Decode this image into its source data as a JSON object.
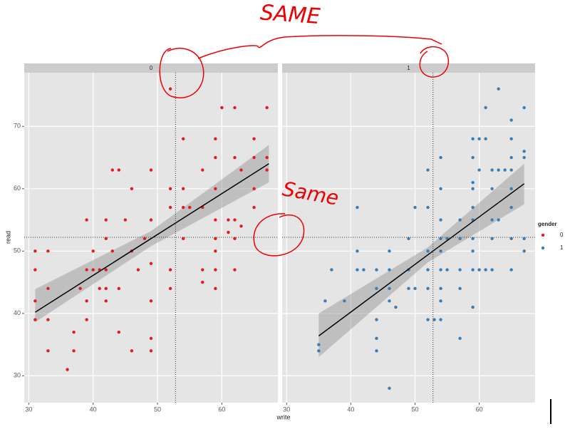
{
  "chart_data": {
    "type": "scatter",
    "x_label": "write",
    "y_label": "read",
    "legend_title": "gender",
    "annotations": [
      "SAME",
      "Same"
    ],
    "xlim": [
      29.3,
      68.7
    ],
    "ylim": [
      25.7,
      78.6
    ],
    "xticks": [
      30,
      40,
      50,
      60
    ],
    "yticks": [
      30,
      40,
      50,
      60,
      70
    ],
    "grid": true,
    "vline": 52.8,
    "hline": 52.2,
    "legend_position": "right",
    "series": [
      {
        "name": "0",
        "color": "#e41a1c",
        "x": [
          31,
          31,
          31,
          31,
          33,
          33,
          33,
          33,
          36,
          37,
          37,
          38,
          39,
          39,
          39,
          39,
          40,
          40,
          41,
          41,
          42,
          42,
          42,
          42,
          42,
          43,
          43,
          44,
          44,
          44,
          45,
          46,
          46,
          46,
          47,
          48,
          49,
          49,
          49,
          49,
          49,
          49,
          52,
          52,
          52,
          52,
          52,
          54,
          54,
          54,
          54,
          55,
          57,
          57,
          57,
          57,
          59,
          59,
          59,
          59,
          59,
          59,
          59,
          59,
          60,
          61,
          61,
          62,
          62,
          62,
          62,
          62,
          63,
          63,
          65,
          65,
          65,
          65,
          67,
          67,
          67
        ],
        "values": [
          50,
          47,
          42,
          39,
          50,
          44,
          39,
          34,
          31,
          37,
          34,
          44,
          55,
          47,
          42,
          39,
          50,
          47,
          47,
          44,
          55,
          52,
          47,
          44,
          42,
          50,
          63,
          63,
          44,
          37,
          55,
          60,
          50,
          34,
          47,
          52,
          63,
          55,
          48,
          42,
          36,
          34,
          76,
          60,
          57,
          47,
          44,
          68,
          60,
          57,
          52,
          57,
          63,
          57,
          47,
          45,
          68,
          65,
          60,
          55,
          52,
          50,
          47,
          44,
          73,
          55,
          53,
          73,
          65,
          55,
          52,
          47,
          63,
          54,
          68,
          65,
          60,
          57,
          73,
          65,
          63
        ],
        "fit": {
          "x": [
            31,
            49,
            67.3
          ],
          "y": [
            40.2,
            52.0,
            64.0
          ],
          "lower": [
            38.6,
            50.8,
            61.0
          ],
          "upper": [
            43.9,
            53.2,
            67.0
          ]
        }
      },
      {
        "name": "1",
        "color": "#377eb8",
        "x": [
          35,
          35,
          36,
          37,
          39,
          41,
          41,
          41,
          42,
          44,
          44,
          44,
          44,
          44,
          46,
          46,
          46,
          46,
          46,
          47,
          49,
          49,
          49,
          50,
          50,
          52,
          52,
          52,
          52,
          52,
          52,
          53,
          54,
          54,
          54,
          54,
          54,
          54,
          54,
          54,
          54,
          55,
          55,
          57,
          57,
          57,
          57,
          57,
          59,
          59,
          59,
          59,
          59,
          59,
          59,
          59,
          59,
          59,
          60,
          60,
          60,
          61,
          61,
          61,
          62,
          62,
          62,
          62,
          62,
          63,
          63,
          63,
          64,
          65,
          65,
          65,
          65,
          65,
          65,
          65,
          65,
          67,
          67,
          67,
          67,
          67
        ],
        "values": [
          35,
          34,
          42,
          47,
          42,
          57,
          50,
          47,
          47,
          47,
          44,
          39,
          36,
          34,
          50,
          47,
          44,
          42,
          28,
          41,
          52,
          47,
          44,
          57,
          44,
          63,
          57,
          50,
          47,
          44,
          39,
          39,
          65,
          60,
          55,
          52,
          50,
          47,
          44,
          42,
          39,
          52,
          47,
          55,
          52,
          47,
          44,
          36,
          68,
          65,
          61,
          60,
          57,
          55,
          52,
          50,
          47,
          41,
          68,
          63,
          47,
          73,
          68,
          47,
          63,
          60,
          55,
          52,
          47,
          76,
          63,
          55,
          63,
          71,
          68,
          65,
          63,
          60,
          57,
          52,
          47,
          73,
          66,
          65,
          52,
          50
        ],
        "fit": {
          "x": [
            35,
            52,
            67
          ],
          "y": [
            36.4,
            49.4,
            60.8
          ],
          "lower": [
            33.0,
            48.2,
            57.5
          ],
          "upper": [
            40.0,
            50.6,
            64.0
          ]
        }
      }
    ]
  }
}
